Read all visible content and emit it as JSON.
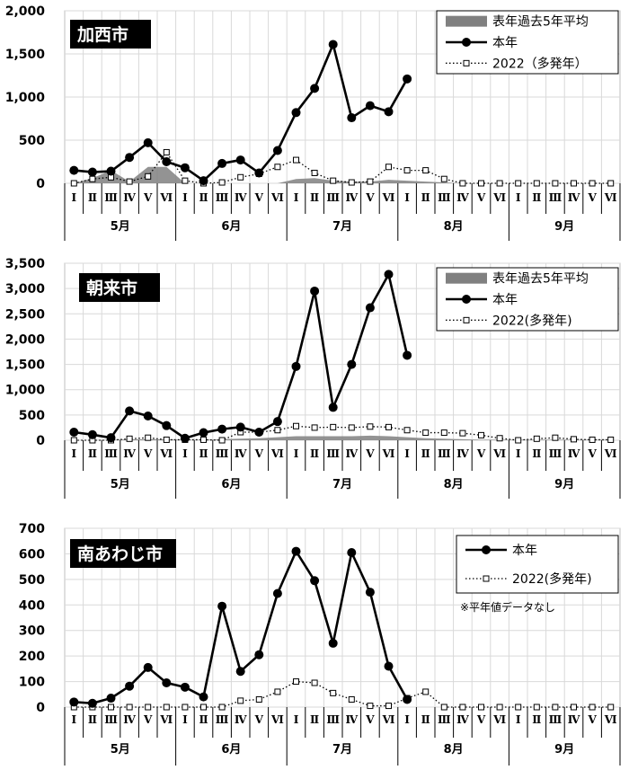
{
  "colors": {
    "current": "#000000",
    "past_avg": "#808080",
    "y2022": "#000000",
    "badge_bg": "#000000",
    "badge_fg": "#ffffff"
  },
  "x_axis": {
    "weeks": [
      "Ⅰ",
      "Ⅱ",
      "Ⅲ",
      "Ⅳ",
      "Ⅴ",
      "Ⅵ"
    ],
    "months": [
      "5月",
      "6月",
      "7月",
      "8月",
      "9月"
    ]
  },
  "chart_data": [
    {
      "type": "line",
      "title": "加西市",
      "ylim": [
        0,
        2000
      ],
      "yticks": [
        "0",
        "500",
        "1,000",
        "1,500",
        "2,000"
      ],
      "grid": true,
      "legend_position": "top-right",
      "legend": [
        "表年過去5年平均",
        "本年",
        "2022（多発年）"
      ],
      "series": [
        {
          "name": "表年過去5年平均",
          "kind": "area",
          "values": [
            0,
            60,
            150,
            20,
            190,
            190,
            0,
            0,
            0,
            0,
            0,
            0,
            50,
            60,
            30,
            20,
            20,
            40,
            30,
            20,
            10,
            0,
            0,
            0,
            0,
            0,
            0,
            0,
            0,
            0
          ]
        },
        {
          "name": "本年",
          "kind": "line",
          "values": [
            150,
            130,
            140,
            300,
            470,
            250,
            180,
            30,
            230,
            270,
            120,
            380,
            820,
            1100,
            1610,
            760,
            900,
            830,
            1210,
            null,
            null,
            null,
            null,
            null,
            null,
            null,
            null,
            null,
            null,
            null
          ]
        },
        {
          "name": "2022（多発年）",
          "kind": "dotted",
          "values": [
            0,
            50,
            70,
            20,
            80,
            360,
            30,
            0,
            10,
            70,
            110,
            190,
            270,
            120,
            30,
            10,
            20,
            190,
            150,
            150,
            50,
            0,
            0,
            0,
            0,
            0,
            0,
            0,
            0,
            0
          ]
        }
      ]
    },
    {
      "type": "line",
      "title": "朝来市",
      "ylim": [
        0,
        3500
      ],
      "yticks": [
        "0",
        "500",
        "1,000",
        "1,500",
        "2,000",
        "2,500",
        "3,000",
        "3,500"
      ],
      "grid": true,
      "legend_position": "top-right",
      "legend": [
        "表年過去5年平均",
        "本年",
        "2022(多発年)"
      ],
      "series": [
        {
          "name": "表年過去5年平均",
          "kind": "area",
          "values": [
            0,
            0,
            10,
            20,
            20,
            20,
            10,
            10,
            20,
            30,
            40,
            60,
            80,
            80,
            80,
            80,
            90,
            80,
            60,
            40,
            30,
            20,
            10,
            10,
            10,
            10,
            10,
            10,
            10,
            10
          ]
        },
        {
          "name": "本年",
          "kind": "line",
          "values": [
            160,
            110,
            50,
            580,
            480,
            290,
            40,
            150,
            220,
            260,
            160,
            370,
            1460,
            2950,
            650,
            1500,
            2620,
            3280,
            1680,
            null,
            null,
            null,
            null,
            null,
            null,
            null,
            null,
            null,
            null,
            null
          ]
        },
        {
          "name": "2022(多発年)",
          "kind": "dotted",
          "values": [
            0,
            0,
            0,
            30,
            50,
            10,
            10,
            10,
            0,
            160,
            160,
            200,
            280,
            250,
            260,
            250,
            270,
            260,
            200,
            150,
            150,
            140,
            100,
            40,
            0,
            30,
            50,
            20,
            10,
            10
          ]
        }
      ]
    },
    {
      "type": "line",
      "title": "南あわじ市",
      "ylim": [
        0,
        700
      ],
      "yticks": [
        "0",
        "100",
        "200",
        "300",
        "400",
        "500",
        "600",
        "700"
      ],
      "grid": true,
      "legend_position": "top-right",
      "legend": [
        "本年",
        "2022(多発年)"
      ],
      "note": "※平年値データなし",
      "series": [
        {
          "name": "本年",
          "kind": "line",
          "values": [
            20,
            15,
            35,
            82,
            155,
            95,
            78,
            40,
            395,
            140,
            205,
            445,
            610,
            495,
            250,
            605,
            450,
            160,
            30,
            null,
            null,
            null,
            null,
            null,
            null,
            null,
            null,
            null,
            null,
            null
          ]
        },
        {
          "name": "2022(多発年)",
          "kind": "dotted",
          "values": [
            0,
            0,
            0,
            0,
            0,
            0,
            0,
            0,
            0,
            25,
            30,
            60,
            100,
            95,
            55,
            30,
            5,
            5,
            35,
            60,
            0,
            0,
            0,
            0,
            0,
            0,
            0,
            0,
            0,
            0
          ]
        }
      ]
    }
  ]
}
